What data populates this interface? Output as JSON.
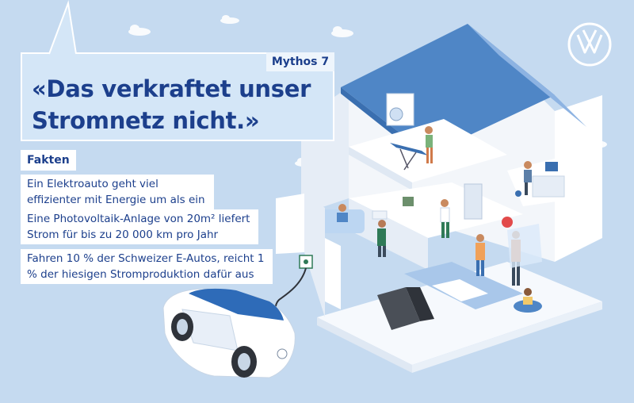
{
  "myth": {
    "tag": "Mythos 7",
    "title": "«Das verkraftet unser Stromnetz nicht.»"
  },
  "facts": {
    "heading": "Fakten",
    "items": [
      "Ein Elektroauto geht viel effizienter mit Energie um als ein Verbrenner",
      "Eine Photovoltaik-Anlage von 20m² liefert Strom für bis zu 20 000 km pro Jahr",
      "Fahren 10 % der Schweizer E-Autos, reicht 1 % der hiesigen Stromproduktion dafür aus"
    ]
  },
  "logo": {
    "name": "vw-logo",
    "color": "#ffffff"
  },
  "colors": {
    "background": "#c5daf0",
    "title": "#1c3f8c",
    "roof": "#4f86c6",
    "wall": "#ffffff",
    "floor": "#a9c7ea"
  }
}
